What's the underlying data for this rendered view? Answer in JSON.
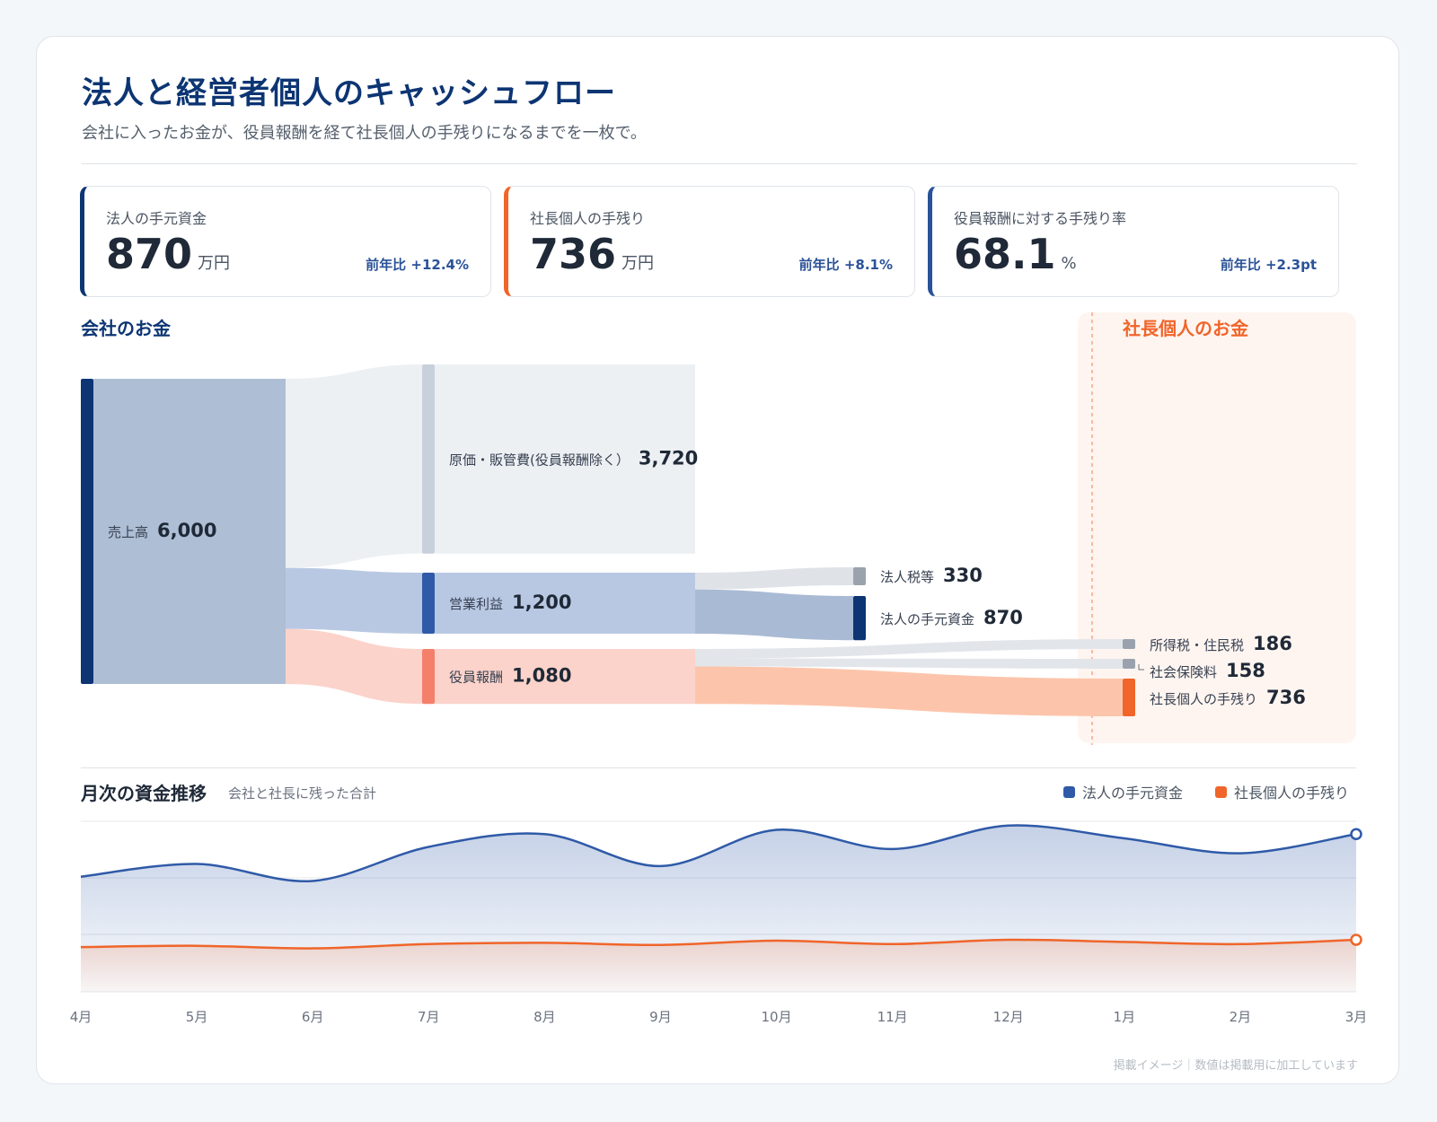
{
  "header": {
    "title": "法人と経営者個人のキャッシュフロー",
    "subtitle": "会社に入ったお金が、役員報酬を経て社長個人の手残りになるまでを一枚で。"
  },
  "kpis": [
    {
      "label": "法人の手元資金",
      "value": "870",
      "unit": "万円",
      "delta": "前年比 +12.4%",
      "accent": "#0d3573"
    },
    {
      "label": "社長個人の手残り",
      "value": "736",
      "unit": "万円",
      "delta": "前年比 +8.1%",
      "accent": "#f0652a"
    },
    {
      "label": "役員報酬に対する手残り率",
      "value": "68.1",
      "unit": "%",
      "delta": "前年比 +2.3pt",
      "accent": "#2a5298"
    }
  ],
  "sections": {
    "company": "会社のお金",
    "personal": "社長個人のお金"
  },
  "colors": {
    "navy": "#0d3573",
    "blue": "#2f5aa8",
    "orange": "#f0652a",
    "salmon": "#f47f6b",
    "gray": "#9aa3ad"
  },
  "chart_data": [
    {
      "type": "sankey",
      "nodes": [
        {
          "id": "sales",
          "label": "売上高",
          "value": 6000,
          "display": "6,000"
        },
        {
          "id": "cogs",
          "label": "原価・販管費(役員報酬除く）",
          "value": 3720,
          "display": "3,720"
        },
        {
          "id": "op",
          "label": "営業利益",
          "value": 1200,
          "display": "1,200"
        },
        {
          "id": "comp",
          "label": "役員報酬",
          "value": 1080,
          "display": "1,080"
        },
        {
          "id": "ctax",
          "label": "法人税等",
          "value": 330,
          "display": "330"
        },
        {
          "id": "cash",
          "label": "法人の手元資金",
          "value": 870,
          "display": "870"
        },
        {
          "id": "itax",
          "label": "所得税・住民税",
          "value": 186,
          "display": "186"
        },
        {
          "id": "ins",
          "label": "社会保険料",
          "value": 158,
          "display": "158"
        },
        {
          "id": "take",
          "label": "社長個人の手残り",
          "value": 736,
          "display": "736"
        }
      ],
      "links": [
        {
          "source": "sales",
          "target": "cogs",
          "value": 3720
        },
        {
          "source": "sales",
          "target": "op",
          "value": 1200
        },
        {
          "source": "sales",
          "target": "comp",
          "value": 1080
        },
        {
          "source": "op",
          "target": "ctax",
          "value": 330
        },
        {
          "source": "op",
          "target": "cash",
          "value": 870
        },
        {
          "source": "comp",
          "target": "itax",
          "value": 186
        },
        {
          "source": "comp",
          "target": "ins",
          "value": 158
        },
        {
          "source": "comp",
          "target": "take",
          "value": 736
        }
      ]
    },
    {
      "type": "area",
      "title": "月次の資金推移",
      "subtitle": "会社と社長に残った合計",
      "categories": [
        "4月",
        "5月",
        "6月",
        "7月",
        "8月",
        "9月",
        "10月",
        "11月",
        "12月",
        "1月",
        "2月",
        "3月"
      ],
      "series": [
        {
          "name": "法人の手元資金",
          "color": "#2f5aa8",
          "values": [
            690,
            720,
            680,
            760,
            790,
            715,
            800,
            755,
            810,
            780,
            745,
            790
          ]
        },
        {
          "name": "社長個人の手残り",
          "color": "#f0652a",
          "values": [
            525,
            528,
            522,
            532,
            535,
            530,
            540,
            532,
            542,
            537,
            532,
            542
          ]
        }
      ],
      "ylim": [
        420,
        820
      ],
      "grid": true,
      "legend": "top-right"
    }
  ],
  "footer": "掲載イメージ｜数値は掲載用に加工しています"
}
